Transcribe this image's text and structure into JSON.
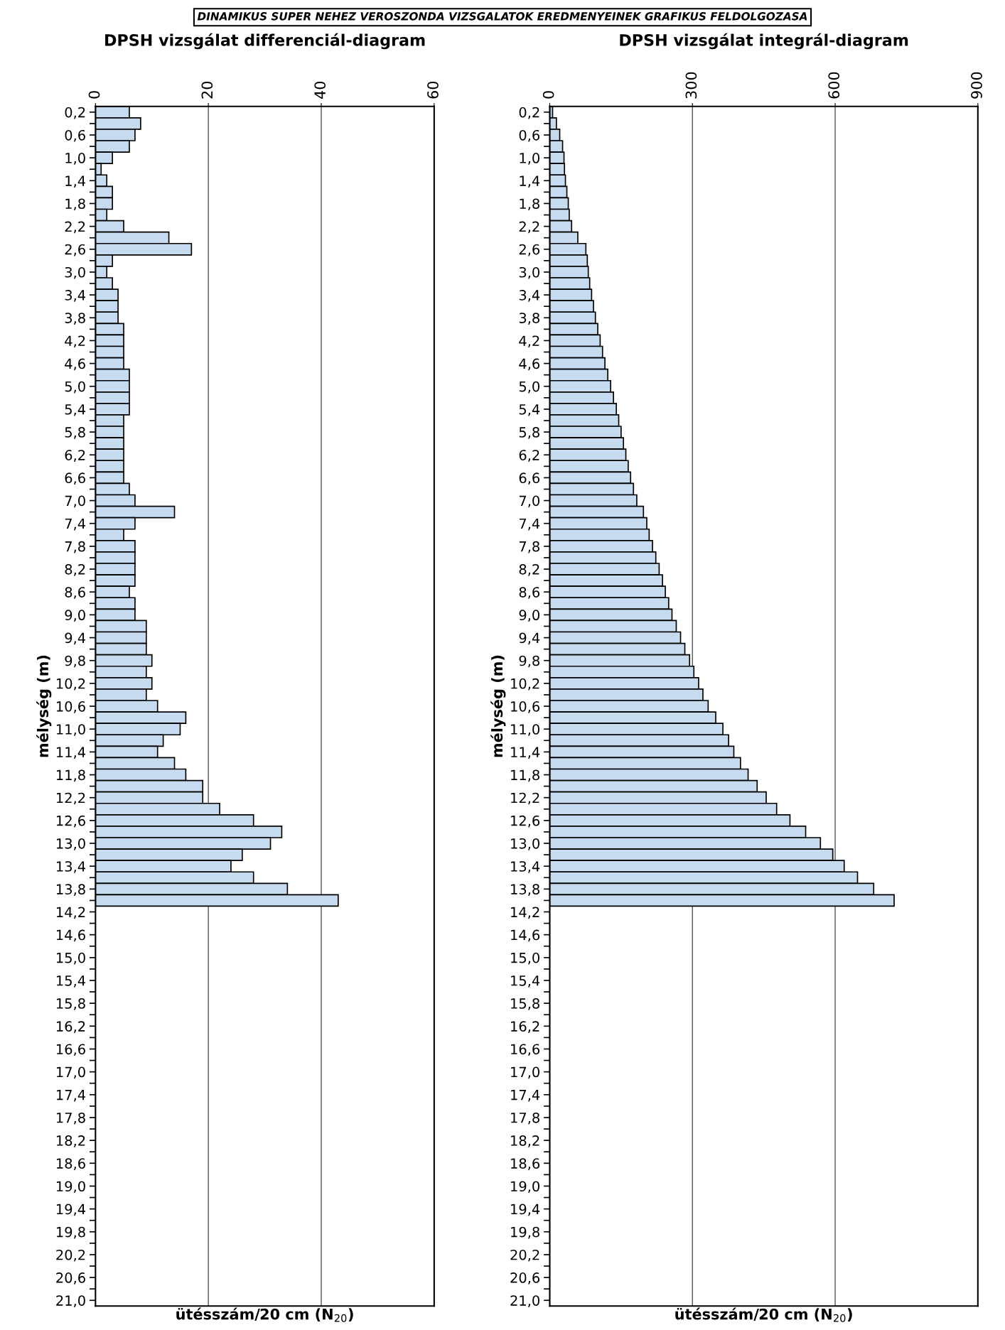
{
  "chart_data": [
    {
      "type": "bar",
      "orientation": "horizontal",
      "title": "DPSH vizsgálat differenciál-diagram",
      "xlabel": "ütésszám/20 cm (N$_{20}$)",
      "ylabel": "mélység (m)",
      "annotations": [
        "DINAMIKUS SUPER NEHEZ VEROSZONDA VIZSGALATOK EREDMENYEINEK GRAFIKUS FELDOLGOZASA"
      ],
      "categories": [
        "0,2",
        null,
        "0,6",
        null,
        "1,0",
        null,
        "1,4",
        null,
        "1,8",
        null,
        "2,2",
        null,
        "2,6",
        null,
        "3,0",
        null,
        "3,4",
        null,
        "3,8",
        null,
        "4,2",
        null,
        "4,6",
        null,
        "5,0",
        null,
        "5,4",
        null,
        "5,8",
        null,
        "6,2",
        null,
        "6,6",
        null,
        "7,0",
        null,
        "7,4",
        null,
        "7,8",
        null,
        "8,2",
        null,
        "8,6",
        null,
        "9,0",
        null,
        "9,4",
        null,
        "9,8",
        null,
        "10,2",
        null,
        "10,6",
        null,
        "11,0",
        null,
        "11,4",
        null,
        "11,8",
        null,
        "12,2",
        null,
        "12,6",
        null,
        "13,0",
        null,
        "13,4",
        null,
        "13,8",
        null,
        "14,2",
        null,
        "14,6",
        null,
        "15,0",
        null,
        "15,4",
        null,
        "15,8",
        null,
        "16,2",
        null,
        "16,6",
        null,
        "17,0",
        null,
        "17,4",
        null,
        "17,8",
        null,
        "18,2",
        null,
        "18,6",
        null,
        "19,0",
        null,
        "19,4",
        null,
        "19,8",
        null,
        "20,2",
        null,
        "20,6",
        null,
        "21,0"
      ],
      "values": [
        6,
        8,
        7,
        6,
        3,
        1,
        2,
        3,
        3,
        2,
        5,
        13,
        17,
        3,
        2,
        3,
        4,
        4,
        4,
        5,
        5,
        5,
        5,
        6,
        6,
        6,
        6,
        5,
        5,
        5,
        5,
        5,
        5,
        6,
        7,
        14,
        7,
        5,
        7,
        7,
        7,
        7,
        6,
        7,
        7,
        9,
        9,
        9,
        10,
        9,
        10,
        9,
        11,
        16,
        15,
        12,
        11,
        14,
        16,
        19,
        19,
        22,
        28,
        33,
        31,
        26,
        24,
        28,
        34,
        43,
        null,
        null,
        null,
        null,
        null,
        null,
        null,
        null,
        null,
        null,
        null,
        null,
        null,
        null,
        null,
        null,
        null,
        null,
        null,
        null,
        null,
        null,
        null,
        null,
        null,
        null,
        null,
        null,
        null,
        null,
        null,
        null,
        null,
        null,
        null
      ],
      "color": "#c6dbef",
      "xlim": [
        0,
        60
      ],
      "xticks": [
        0,
        20,
        40,
        60
      ],
      "grid": "x"
    },
    {
      "type": "bar",
      "orientation": "horizontal",
      "title": "DPSH vizsgálat integrál-diagram",
      "xlabel": "ütésszám/20 cm (N$_{20}$)",
      "ylabel": "mélység (m)",
      "categories": [
        "0,2",
        null,
        "0,6",
        null,
        "1,0",
        null,
        "1,4",
        null,
        "1,8",
        null,
        "2,2",
        null,
        "2,6",
        null,
        "3,0",
        null,
        "3,4",
        null,
        "3,8",
        null,
        "4,2",
        null,
        "4,6",
        null,
        "5,0",
        null,
        "5,4",
        null,
        "5,8",
        null,
        "6,2",
        null,
        "6,6",
        null,
        "7,0",
        null,
        "7,4",
        null,
        "7,8",
        null,
        "8,2",
        null,
        "8,6",
        null,
        "9,0",
        null,
        "9,4",
        null,
        "9,8",
        null,
        "10,2",
        null,
        "10,6",
        null,
        "11,0",
        null,
        "11,4",
        null,
        "11,8",
        null,
        "12,2",
        null,
        "12,6",
        null,
        "13,0",
        null,
        "13,4",
        null,
        "13,8",
        null,
        "14,2",
        null,
        "14,6",
        null,
        "15,0",
        null,
        "15,4",
        null,
        "15,8",
        null,
        "16,2",
        null,
        "16,6",
        null,
        "17,0",
        null,
        "17,4",
        null,
        "17,8",
        null,
        "18,2",
        null,
        "18,6",
        null,
        "19,0",
        null,
        "19,4",
        null,
        "19,8",
        null,
        "20,2",
        null,
        "20,6",
        null,
        "21,0"
      ],
      "values": [
        6,
        14,
        21,
        27,
        30,
        31,
        33,
        36,
        39,
        41,
        46,
        59,
        76,
        79,
        81,
        84,
        88,
        92,
        96,
        101,
        106,
        111,
        116,
        122,
        128,
        134,
        140,
        145,
        150,
        155,
        160,
        165,
        170,
        176,
        183,
        197,
        204,
        209,
        216,
        223,
        230,
        237,
        243,
        250,
        257,
        266,
        275,
        284,
        294,
        303,
        313,
        322,
        333,
        349,
        364,
        376,
        387,
        401,
        417,
        436,
        455,
        477,
        505,
        538,
        569,
        595,
        619,
        647,
        681,
        724,
        null,
        null,
        null,
        null,
        null,
        null,
        null,
        null,
        null,
        null,
        null,
        null,
        null,
        null,
        null,
        null,
        null,
        null,
        null,
        null,
        null,
        null,
        null,
        null,
        null,
        null,
        null,
        null,
        null,
        null,
        null,
        null,
        null,
        null,
        null
      ],
      "color": "#c6dbef",
      "xlim": [
        0,
        900
      ],
      "xticks": [
        0,
        300,
        600,
        900
      ],
      "grid": "x"
    }
  ]
}
